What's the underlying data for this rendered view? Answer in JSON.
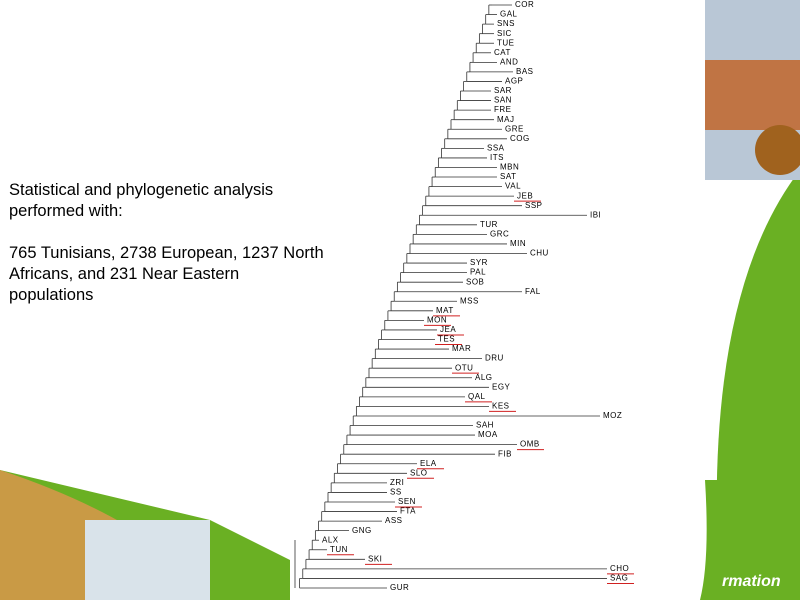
{
  "text": {
    "lines": [
      "Statistical and phylogenetic analysis",
      "performed with:",
      "765 Tunisians, 2738 European, 1237 North",
      "Africans, and 231 Near Eastern",
      "populations"
    ]
  },
  "tree": {
    "nodes": [
      {
        "label": "COR"
      },
      {
        "label": "GAL"
      },
      {
        "label": "SNS"
      },
      {
        "label": "SIC"
      },
      {
        "label": "TUE"
      },
      {
        "label": "CAT"
      },
      {
        "label": "AND"
      },
      {
        "label": "BAS"
      },
      {
        "label": "AGP"
      },
      {
        "label": "SAR"
      },
      {
        "label": "SAN"
      },
      {
        "label": "FRE"
      },
      {
        "label": "MAJ"
      },
      {
        "label": "GRE"
      },
      {
        "label": "COG"
      },
      {
        "label": "SSA"
      },
      {
        "label": "ITS"
      },
      {
        "label": "MBN"
      },
      {
        "label": "SAT"
      },
      {
        "label": "VAL"
      },
      {
        "label": "JEB",
        "underlined": true
      },
      {
        "label": "SSP"
      },
      {
        "label": "IBI"
      },
      {
        "label": "TUR"
      },
      {
        "label": "GRC"
      },
      {
        "label": "MIN"
      },
      {
        "label": "CHU"
      },
      {
        "label": "SYR"
      },
      {
        "label": "PAL"
      },
      {
        "label": "SOB"
      },
      {
        "label": "FAL"
      },
      {
        "label": "MSS"
      },
      {
        "label": "MAT",
        "underlined": true
      },
      {
        "label": "MON",
        "underlined": true
      },
      {
        "label": "JEA",
        "underlined": true
      },
      {
        "label": "TES",
        "underlined": true
      },
      {
        "label": "MAR"
      },
      {
        "label": "DRU"
      },
      {
        "label": "OTU",
        "underlined": true
      },
      {
        "label": "ALG"
      },
      {
        "label": "EGY"
      },
      {
        "label": "QAL",
        "underlined": true
      },
      {
        "label": "KES",
        "underlined": true
      },
      {
        "label": "MOZ"
      },
      {
        "label": "SAH"
      },
      {
        "label": "MOA"
      },
      {
        "label": "OMB",
        "underlined": true
      },
      {
        "label": "FIB"
      },
      {
        "label": "ELA",
        "underlined": true
      },
      {
        "label": "SLO",
        "underlined": true
      },
      {
        "label": "ZRI"
      },
      {
        "label": "SS"
      },
      {
        "label": "SEN",
        "underlined": true
      },
      {
        "label": "FTA"
      },
      {
        "label": "ASS"
      },
      {
        "label": "GNG"
      },
      {
        "label": "ALX"
      },
      {
        "label": "TUN",
        "underlined": true
      },
      {
        "label": "SKI",
        "underlined": true
      },
      {
        "label": "CHO",
        "underlined": true
      },
      {
        "label": "SAG",
        "underlined": true
      },
      {
        "label": "GUR"
      }
    ]
  },
  "footer": {
    "text": "rmation"
  }
}
